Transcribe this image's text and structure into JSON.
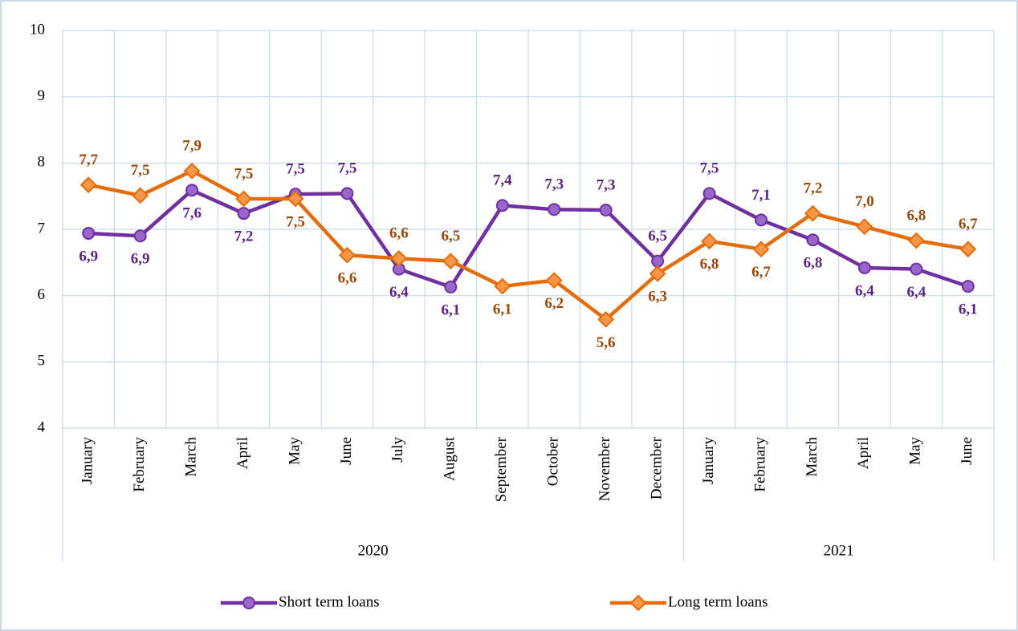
{
  "chart_data": {
    "type": "line",
    "categories": [
      "January",
      "February",
      "March",
      "April",
      "May",
      "June",
      "July",
      "August",
      "September",
      "October",
      "November",
      "December",
      "January",
      "February",
      "March",
      "April",
      "May",
      "June"
    ],
    "groups": [
      {
        "label": "2020",
        "span": 12
      },
      {
        "label": "2021",
        "span": 6
      }
    ],
    "series": [
      {
        "name": "Short term loans",
        "color": "#7030a0",
        "marker_color": "#9966cc",
        "label_color": "#5b2483",
        "values": [
          6.94,
          6.9,
          7.59,
          7.24,
          7.53,
          7.54,
          6.4,
          6.13,
          7.36,
          7.3,
          7.29,
          6.52,
          7.54,
          7.14,
          6.84,
          6.42,
          6.4,
          6.14
        ],
        "value_labels": [
          "6,9",
          "6,9",
          "7,6",
          "7,2",
          "7,5",
          "7,5",
          "6,4",
          "6,1",
          "7,4",
          "7,3",
          "7,3",
          "6,5",
          "7,5",
          "7,1",
          "6,8",
          "6,4",
          "6,4",
          "6,1"
        ]
      },
      {
        "name": "Long term loans",
        "color": "#e46c0a",
        "marker_color": "#f79646",
        "label_color": "#984807",
        "values": [
          7.67,
          7.51,
          7.88,
          7.46,
          7.46,
          6.61,
          6.56,
          6.52,
          6.14,
          6.23,
          5.64,
          6.33,
          6.82,
          6.7,
          7.24,
          7.04,
          6.83,
          6.7
        ],
        "value_labels": [
          "7,7",
          "7,5",
          "7,9",
          "7,5",
          "7,5",
          "6,6",
          "6,6",
          "6,5",
          "6,1",
          "6,2",
          "5,6",
          "6,3",
          "6,8",
          "6,7",
          "7,2",
          "7,0",
          "6,8",
          "6,7"
        ]
      }
    ],
    "ylim": [
      4,
      10
    ],
    "yticks": [
      4,
      5,
      6,
      7,
      8,
      9,
      10
    ],
    "grid": true
  }
}
